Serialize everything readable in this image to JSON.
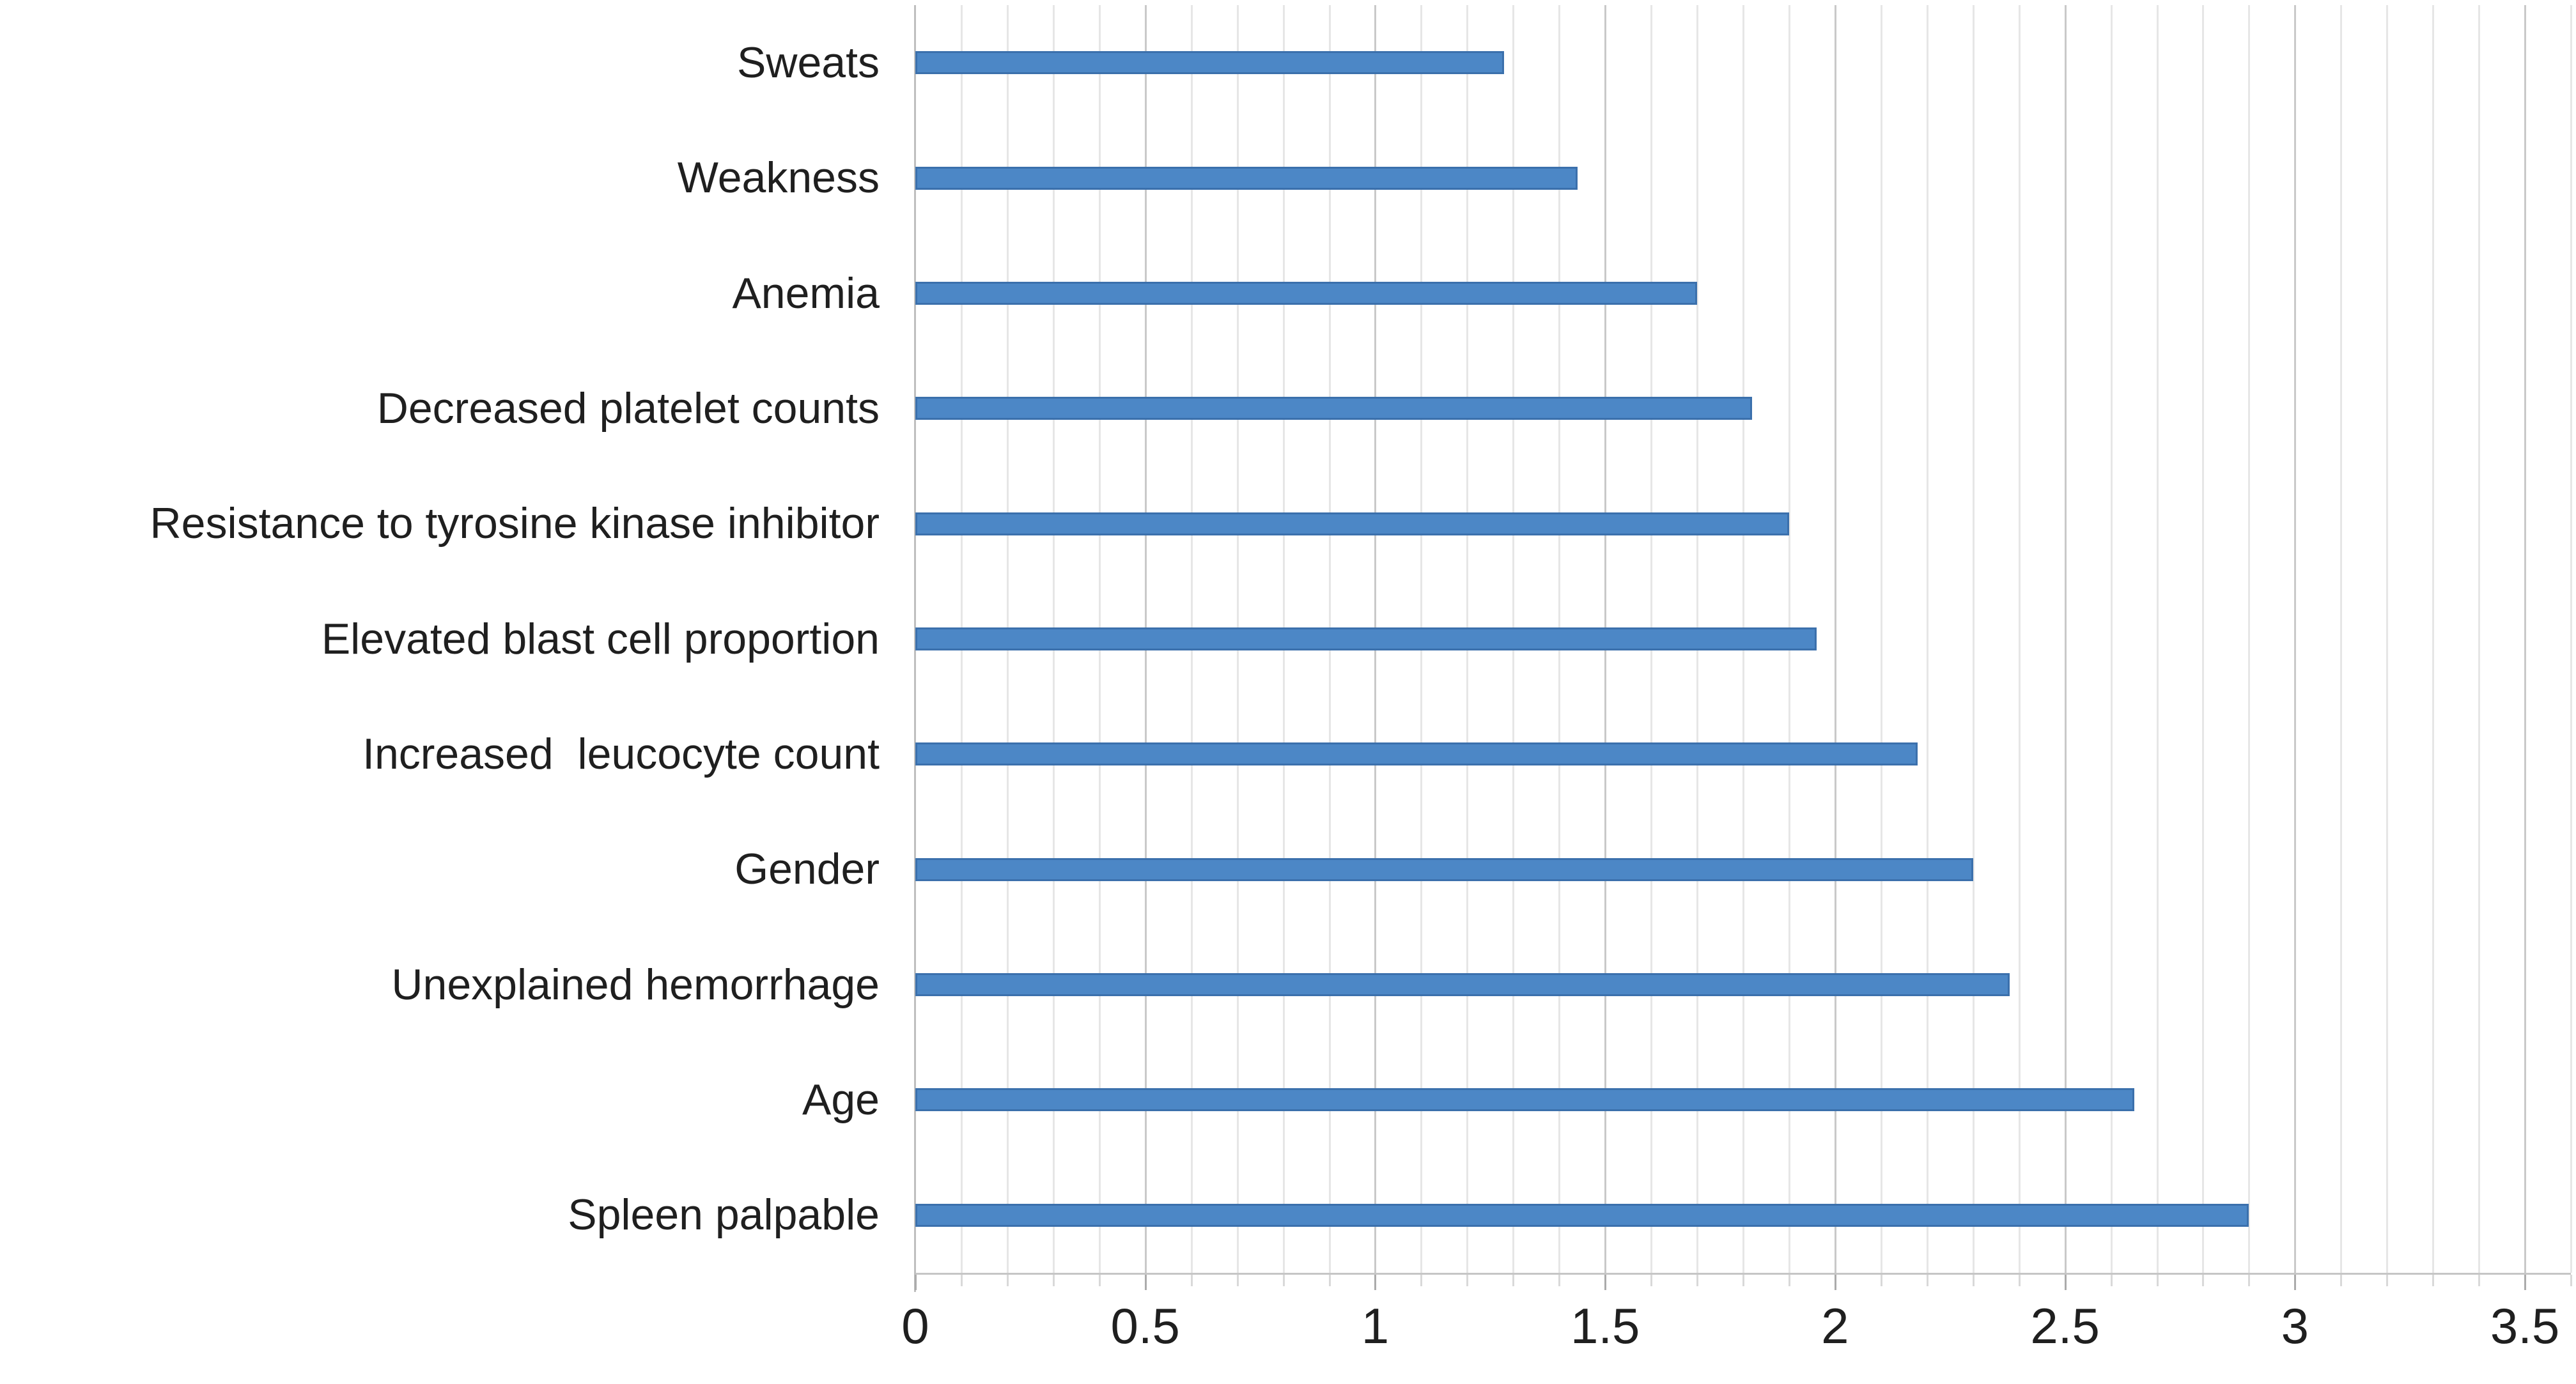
{
  "chart_data": {
    "type": "bar",
    "orientation": "horizontal",
    "title": "",
    "xlabel": "",
    "ylabel": "",
    "categories": [
      "Sweats",
      "Weakness",
      "Anemia",
      "Decreased platelet counts",
      "Resistance to tyrosine kinase inhibitor",
      "Elevated blast cell proportion",
      "Increased  leucocyte count",
      "Gender",
      "Unexplained hemorrhage",
      "Age",
      "Spleen palpable"
    ],
    "values": [
      1.28,
      1.44,
      1.7,
      1.82,
      1.9,
      1.96,
      2.18,
      2.3,
      2.38,
      2.65,
      2.9
    ],
    "xlim": [
      0,
      3.6
    ],
    "x_ticks": [
      0,
      0.5,
      1,
      1.5,
      2,
      2.5,
      3,
      3.5
    ],
    "x_tick_labels": [
      "0",
      "0.5",
      "1",
      "1.5",
      "2",
      "2.5",
      "3",
      "3.5"
    ],
    "minor_grid_step": 0.1,
    "grid": true,
    "legend": false,
    "colors": {
      "bar_fill": "#4c87c6",
      "bar_border": "#3b70ac",
      "minor_gridline": "#e6e6e6",
      "major_gridline": "#c9c9c9",
      "axis_line": "#bfbfbf",
      "text": "#1f1f1f",
      "background": "#ffffff"
    }
  }
}
